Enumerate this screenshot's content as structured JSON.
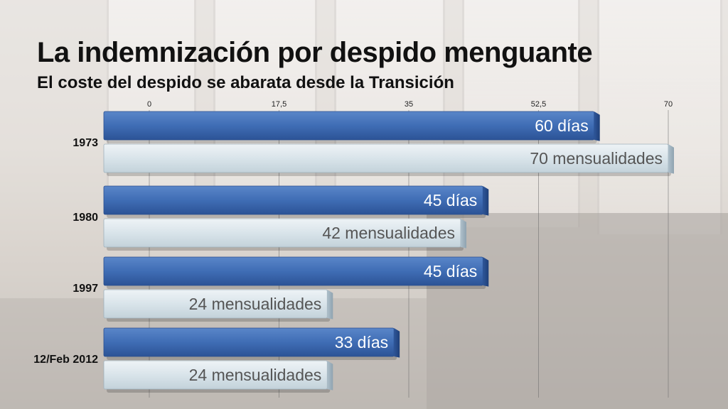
{
  "title": "La indemnización por despido menguante",
  "subtitle": "El coste del despido se abarata desde la Transición",
  "colors": {
    "dias_bar": "#3f6db5",
    "dias_text": "#ffffff",
    "mensualidades_bar": "#d9e4ea",
    "mensualidades_text": "#555555"
  },
  "chart_data": {
    "type": "bar",
    "orientation": "horizontal",
    "title": "La indemnización por despido menguante",
    "subtitle": "El coste del despido se abarata desde la Transición",
    "categories": [
      "1973",
      "1980",
      "1997",
      "12/Feb 2012"
    ],
    "series": [
      {
        "key": "dias",
        "values": [
          60,
          45,
          45,
          33
        ],
        "labels": [
          "60 días",
          "45 días",
          "45 días",
          "33 días"
        ]
      },
      {
        "key": "mensualidades",
        "values": [
          70,
          42,
          24,
          24
        ],
        "labels": [
          "70 mensualidades",
          "42 mensualidades",
          "24 mensualidades",
          "24 mensualidades"
        ]
      }
    ],
    "xlim": [
      0,
      70
    ],
    "ticks": [
      "0",
      "17,5",
      "35",
      "52,5",
      "70"
    ],
    "tick_values": [
      0,
      17.5,
      35,
      52.5,
      70
    ],
    "grid": true,
    "legend": "none"
  }
}
